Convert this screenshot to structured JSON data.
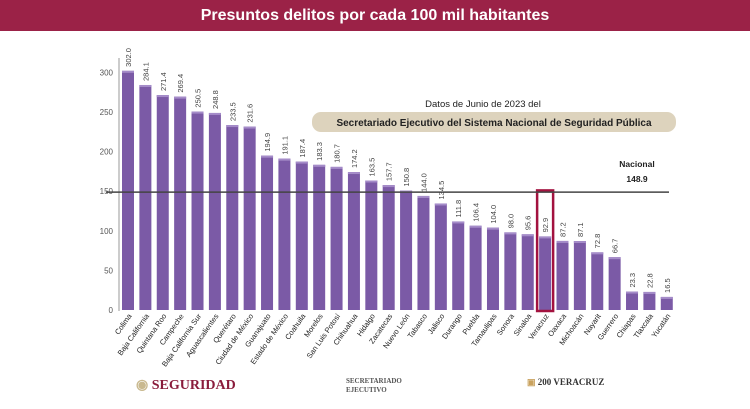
{
  "header": {
    "title": "Presuntos delitos por cada 100 mil habitantes"
  },
  "annotation": {
    "date_text": "Datos  de Junio de 2023 del",
    "source_text": "Secretariado Ejecutivo del Sistema Nacional de Seguridad Pública"
  },
  "chart_data": {
    "type": "bar",
    "title": "Presuntos delitos por cada 100 mil habitantes",
    "xlabel": "",
    "ylabel": "",
    "ylim": [
      0,
      330
    ],
    "yticks": [
      0,
      50,
      100,
      150,
      200,
      250,
      300
    ],
    "grid": false,
    "bar_color": "#7b5aa6",
    "categories": [
      "Colima",
      "Baja California",
      "Quintana Roo",
      "Campeche",
      "Baja California Sur",
      "Aguascalientes",
      "Querétaro",
      "Ciudad de México",
      "Guanajuato",
      "Estado de México",
      "Coahuila",
      "Morelos",
      "San Luis Potosí",
      "Chihuahua",
      "Hidalgo",
      "Zacatecas",
      "Nuevo León",
      "Tabasco",
      "Jalisco",
      "Durango",
      "Puebla",
      "Tamaulipas",
      "Sonora",
      "Sinaloa",
      "Veracruz",
      "Oaxaca",
      "Michoacán",
      "Nayarit",
      "Guerrero",
      "Chiapas",
      "Tlaxcala",
      "Yucatán"
    ],
    "values": [
      302.0,
      284.1,
      271.4,
      269.4,
      250.5,
      248.8,
      233.5,
      231.6,
      194.9,
      191.1,
      187.4,
      183.3,
      180.7,
      174.2,
      163.5,
      157.7,
      150.8,
      144.0,
      134.5,
      111.8,
      106.4,
      104.0,
      98.0,
      95.6,
      92.9,
      87.2,
      87.1,
      72.8,
      66.7,
      23.3,
      22.8,
      16.5
    ],
    "highlight": {
      "category": "Veracruz",
      "color": "#a3123f"
    },
    "reference_line": {
      "label": "Nacional",
      "value": 148.9,
      "value_label": "148.9"
    }
  },
  "footer": {
    "logo1": "SEGURIDAD",
    "logo2": "SECRETARIADO EJECUTIVO",
    "logo3": "200 VERACRUZ"
  }
}
